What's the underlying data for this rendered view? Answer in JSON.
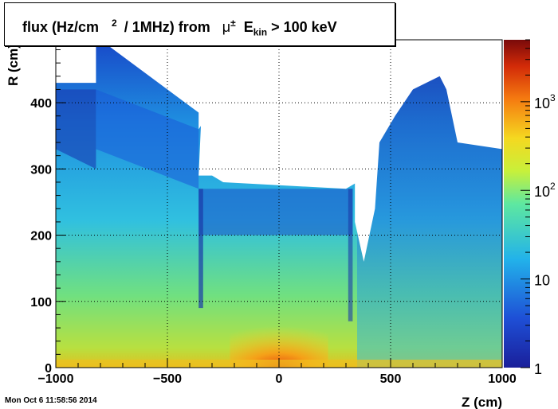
{
  "chart_data": {
    "type": "heatmap",
    "title": {
      "part1": "flux (Hz/cm",
      "sup1": "2",
      "part2": " / 1MHz) from",
      "mu": "μ",
      "sup2": "±",
      "e": "E",
      "sub": "kin",
      "part3": "> 100 keV"
    },
    "xlabel": "Z (cm)",
    "ylabel": "R (cm)",
    "xlim": [
      -1000,
      1000
    ],
    "ylim": [
      0,
      495
    ],
    "x_ticks": [
      {
        "v": -1000,
        "label": "−1000"
      },
      {
        "v": -500,
        "label": "−500"
      },
      {
        "v": 0,
        "label": "0"
      },
      {
        "v": 500,
        "label": "500"
      },
      {
        "v": 1000,
        "label": "1000"
      }
    ],
    "y_ticks": [
      {
        "v": 0,
        "label": "0"
      },
      {
        "v": 100,
        "label": "100"
      },
      {
        "v": 200,
        "label": "200"
      },
      {
        "v": 300,
        "label": "300"
      },
      {
        "v": 400,
        "label": "400"
      }
    ],
    "z_scale": "log",
    "zlim": [
      1,
      5000
    ],
    "z_ticks": [
      {
        "v": 1,
        "base": "1",
        "exp": ""
      },
      {
        "v": 10,
        "base": "10",
        "exp": ""
      },
      {
        "v": 100,
        "base": "10",
        "exp": "2"
      },
      {
        "v": 1000,
        "base": "10",
        "exp": "3"
      }
    ],
    "grid": true,
    "colormap": "rainbow"
  },
  "timestamp": "Mon Oct  6 11:58:56 2014"
}
